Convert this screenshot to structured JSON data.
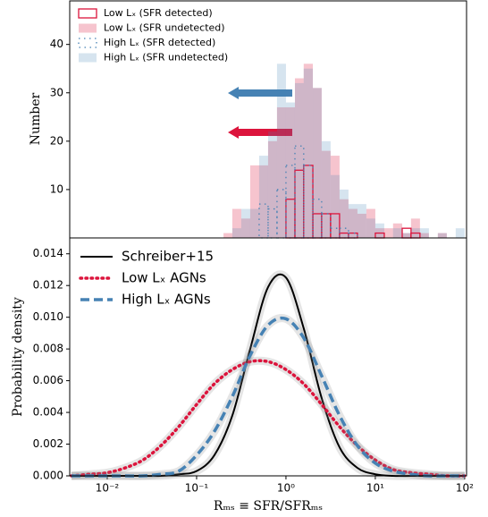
{
  "chart_data": [
    {
      "type": "histogram",
      "xscale": "log",
      "xlim": [
        0.0038,
        105
      ],
      "ylim": [
        0,
        49
      ],
      "yticks": [
        10,
        20,
        30,
        40
      ],
      "ylabel": "Number",
      "legend": "upper left",
      "bins": [
        0.2,
        0.251,
        0.316,
        0.398,
        0.501,
        0.631,
        0.794,
        1,
        1.26,
        1.58,
        2,
        2.51,
        3.16,
        3.98,
        5.01,
        6.31,
        7.94,
        10,
        12.6,
        15.8,
        20,
        25.1,
        31.6,
        39.8,
        50.1,
        63.1,
        79.4,
        100
      ],
      "series": [
        {
          "name": "Low Lₓ (SFR detected)",
          "color": "#dc143c",
          "style": "step",
          "linestyle": "solid",
          "values": [
            0,
            0,
            0,
            0,
            0,
            0,
            0,
            8,
            14,
            15,
            5,
            5,
            5,
            1,
            1,
            0,
            0,
            1,
            0,
            0,
            2,
            1,
            0,
            0,
            0,
            0,
            0
          ]
        },
        {
          "name": "Low Lₓ (SFR undetected)",
          "color": "#dc143c",
          "style": "filled",
          "alpha": 0.25,
          "values": [
            1,
            6,
            4,
            15,
            15,
            20,
            27,
            27,
            33,
            36,
            31,
            18,
            17,
            8,
            6,
            5,
            6,
            2,
            2,
            3,
            1,
            4,
            1,
            0,
            1,
            0,
            0
          ]
        },
        {
          "name": "High Lₓ (SFR detected)",
          "color": "#4682b4",
          "style": "step",
          "linestyle": "dotted",
          "values": [
            0,
            0,
            0,
            0,
            7,
            6,
            10,
            15,
            19,
            15,
            8,
            5,
            2,
            2,
            1,
            0,
            0,
            0,
            0,
            0,
            0,
            0,
            0,
            0,
            0,
            0,
            0
          ]
        },
        {
          "name": "High Lₓ (SFR undetected)",
          "color": "#4682b4",
          "style": "filled",
          "alpha": 0.22,
          "values": [
            0,
            2,
            6,
            6,
            17,
            22,
            36,
            28,
            32,
            35,
            31,
            20,
            13,
            10,
            7,
            7,
            4,
            3,
            0,
            2,
            1,
            2,
            2,
            0,
            1,
            0,
            2
          ]
        }
      ]
    },
    {
      "type": "line",
      "xscale": "log",
      "xlim": [
        0.0038,
        105
      ],
      "ylim": [
        0,
        0.015
      ],
      "xticks": [
        {
          "value": 0.01,
          "label": "10⁻²"
        },
        {
          "value": 0.1,
          "label": "10⁻¹"
        },
        {
          "value": 1,
          "label": "10⁰"
        },
        {
          "value": 10,
          "label": "10¹"
        },
        {
          "value": 100,
          "label": "10²"
        }
      ],
      "yticks": [
        {
          "value": 0,
          "label": "0.000"
        },
        0.002,
        0.004,
        0.006,
        0.008,
        {
          "value": 0.01,
          "label": "0.010"
        },
        0.012,
        0.014
      ],
      "xlabel": "Rₘₛ ≡ SFR/SFRₘₛ",
      "ylabel": "Probability density",
      "legend": "upper left",
      "x": [
        0.00398,
        0.00631,
        0.01,
        0.0158,
        0.0251,
        0.0398,
        0.0631,
        0.1,
        0.158,
        0.251,
        0.398,
        0.631,
        1,
        1.58,
        2.51,
        3.98,
        6.31,
        10,
        15.8,
        25.1,
        39.8,
        63.1,
        100
      ],
      "series": [
        {
          "name": "Schreiber+15",
          "color": "#000000",
          "linestyle": "solid",
          "values": [
            0,
            0,
            0,
            0,
            0,
            0,
            0.0001,
            0.0003,
            0.0013,
            0.0038,
            0.008,
            0.0119,
            0.0125,
            0.0093,
            0.0049,
            0.0018,
            0.0005,
            0.0001,
            0,
            0,
            0,
            0,
            0
          ]
        },
        {
          "name": "Low Lₓ AGNs",
          "color": "#dc143c",
          "linestyle": "dotted",
          "values": [
            0,
            0.0001,
            0.0002,
            0.0005,
            0.001,
            0.0019,
            0.0031,
            0.0045,
            0.0058,
            0.0067,
            0.0072,
            0.0072,
            0.0067,
            0.0058,
            0.0045,
            0.0031,
            0.0019,
            0.001,
            0.0004,
            0.0002,
            0.0001,
            0,
            0
          ]
        },
        {
          "name": "High Lₓ AGNs",
          "color": "#4682b4",
          "linestyle": "dashed",
          "values": [
            0,
            0,
            0,
            0,
            0,
            0.0001,
            0.0003,
            0.0013,
            0.0028,
            0.005,
            0.0076,
            0.0095,
            0.0099,
            0.0087,
            0.0063,
            0.0038,
            0.0019,
            0.0008,
            0.0003,
            0.0001,
            0,
            0,
            0
          ]
        }
      ]
    }
  ]
}
